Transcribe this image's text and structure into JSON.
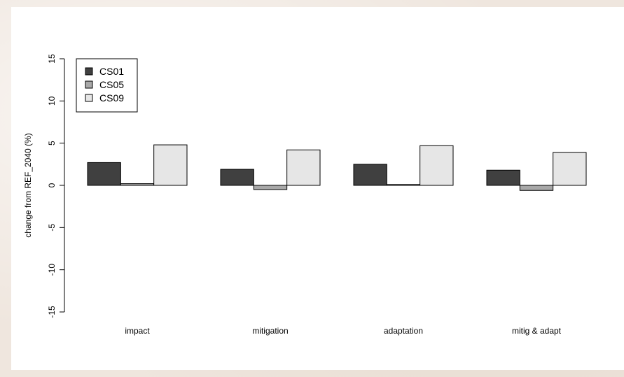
{
  "chart_data": {
    "type": "bar",
    "title": "",
    "xlabel": "",
    "ylabel": "change from REF_2040 (%)",
    "ylim": [
      -15,
      15
    ],
    "yticks": [
      -15,
      -10,
      -5,
      0,
      5,
      10,
      15
    ],
    "categories": [
      "impact",
      "mitigation",
      "adaptation",
      "mitig & adapt"
    ],
    "series": [
      {
        "name": "CS01",
        "color": "#404040",
        "values": [
          2.7,
          1.9,
          2.5,
          1.8
        ]
      },
      {
        "name": "CS05",
        "color": "#a8a8a8",
        "values": [
          0.2,
          -0.5,
          0.1,
          -0.6
        ]
      },
      {
        "name": "CS09",
        "color": "#e6e6e6",
        "values": [
          4.8,
          4.2,
          4.7,
          3.9
        ]
      }
    ],
    "legend_position": "top-left",
    "grid": false
  }
}
